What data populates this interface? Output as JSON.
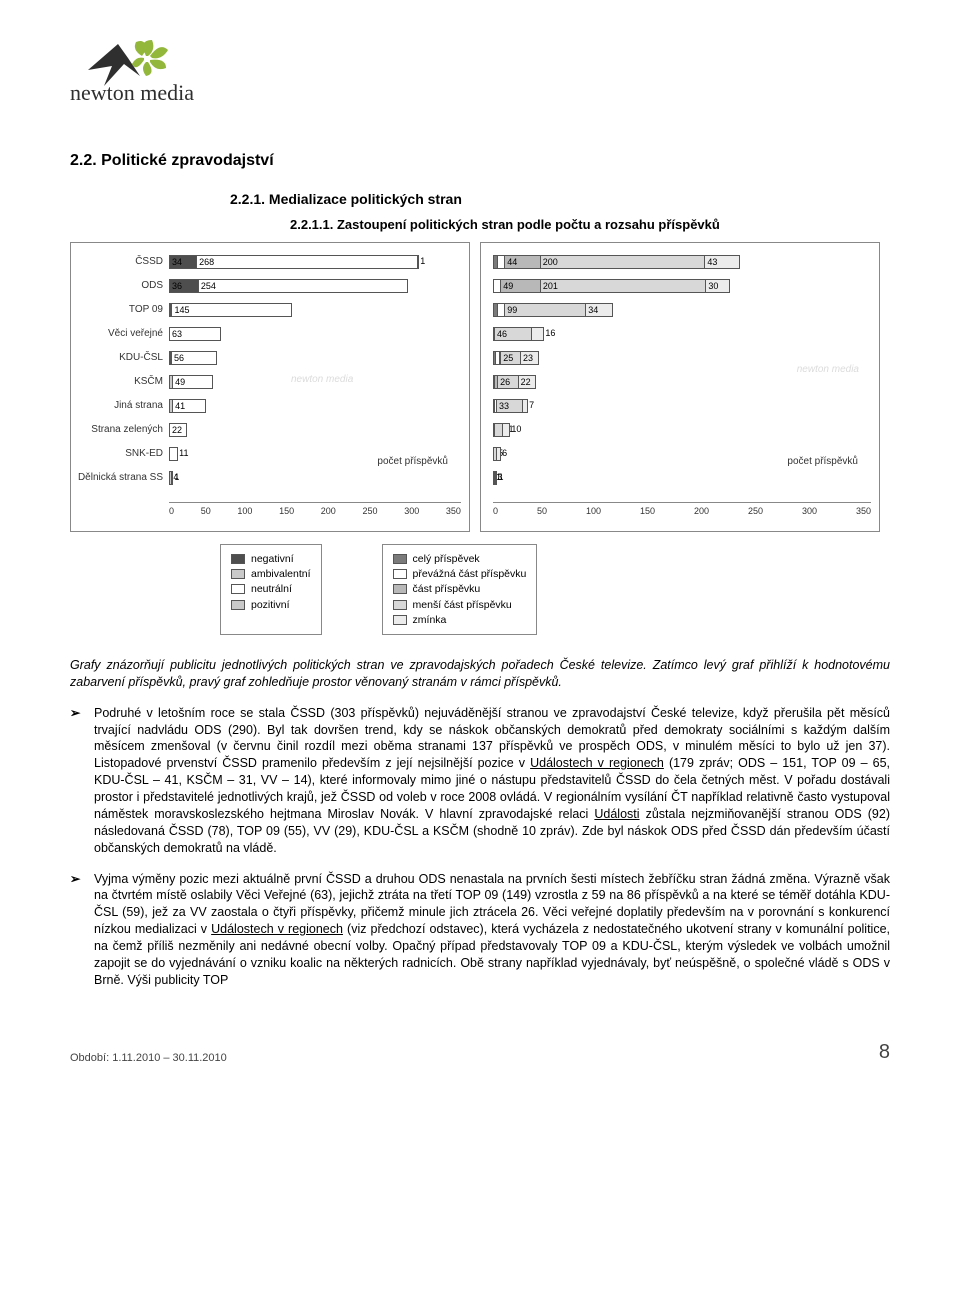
{
  "brand": {
    "name": "newton media"
  },
  "headings": {
    "h2": "2.2. Politické zpravodajství",
    "h3": "2.2.1. Medializace politických stran",
    "h4": "2.2.1.1. Zastoupení politických stran podle počtu a rozsahu příspěvků"
  },
  "chart_left": {
    "type": "stacked-bar-horizontal",
    "caption": "počet příspěvků",
    "xmax": 350,
    "xtick_step": 50,
    "xticks": [
      "0",
      "50",
      "100",
      "150",
      "200",
      "250",
      "300",
      "350"
    ],
    "categories": [
      "ČSSD",
      "ODS",
      "TOP 09",
      "Věci veřejné",
      "KDU-ČSL",
      "KSČM",
      "Jiná strana",
      "Strana zelených",
      "SNK-ED",
      "Dělnická strana SS"
    ],
    "series": [
      {
        "name": "negativní",
        "color": "#4e4e4e"
      },
      {
        "name": "ambivalentní",
        "color": "#c9c9c9"
      },
      {
        "name": "neutrální",
        "color": "#ffffff"
      },
      {
        "name": "pozitivní",
        "color": "#c9c9c9"
      }
    ],
    "rows": [
      {
        "label": "ČSSD",
        "segs": [
          {
            "v": 34,
            "c": "#4e4e4e"
          },
          {
            "v": 268,
            "c": "#ffffff"
          },
          {
            "v": 1,
            "c": "#c9c9c9"
          }
        ]
      },
      {
        "label": "ODS",
        "segs": [
          {
            "v": 36,
            "c": "#4e4e4e"
          },
          {
            "v": 254,
            "c": "#ffffff"
          }
        ]
      },
      {
        "label": "TOP 09",
        "segs": [
          {
            "v": 1,
            "c": "#4e4e4e"
          },
          {
            "v": 3,
            "c": "#c9c9c9"
          },
          {
            "v": 145,
            "c": "#ffffff"
          }
        ]
      },
      {
        "label": "Věci veřejné",
        "segs": [
          {
            "v": 63,
            "c": "#ffffff"
          }
        ]
      },
      {
        "label": "KDU-ČSL",
        "segs": [
          {
            "v": 1,
            "c": "#4e4e4e"
          },
          {
            "v": 2,
            "c": "#c9c9c9"
          },
          {
            "v": 56,
            "c": "#ffffff"
          }
        ]
      },
      {
        "label": "KSČM",
        "segs": [
          {
            "v": 5,
            "c": "#c9c9c9"
          },
          {
            "v": 49,
            "c": "#ffffff"
          }
        ]
      },
      {
        "label": "Jiná strana",
        "segs": [
          {
            "v": 5,
            "c": "#c9c9c9"
          },
          {
            "v": 41,
            "c": "#ffffff"
          }
        ]
      },
      {
        "label": "Strana zelených",
        "segs": [
          {
            "v": 22,
            "c": "#ffffff"
          }
        ]
      },
      {
        "label": "SNK-ED",
        "segs": [
          {
            "v": 11,
            "c": "#ffffff"
          }
        ]
      },
      {
        "label": "Dělnická strana SS",
        "segs": [
          {
            "v": 4,
            "c": "#c9c9c9"
          },
          {
            "v": 1,
            "c": "#ffffff"
          }
        ]
      }
    ]
  },
  "chart_right": {
    "type": "stacked-bar-horizontal",
    "caption": "počet příspěvků",
    "xmax": 350,
    "xtick_step": 50,
    "xticks": [
      "0",
      "50",
      "100",
      "150",
      "200",
      "250",
      "300",
      "350"
    ],
    "series": [
      {
        "name": "celý příspěvek",
        "color": "#7a7a7a"
      },
      {
        "name": "převážná část příspěvku",
        "color": "#ffffff"
      },
      {
        "name": "část příspěvku",
        "color": "#b8b8b8"
      },
      {
        "name": "menší část příspěvku",
        "color": "#d8d8d8"
      },
      {
        "name": "zmínka",
        "color": "#ececec"
      }
    ],
    "rows": [
      {
        "label": "",
        "segs": [
          {
            "v": 6,
            "c": "#7a7a7a"
          },
          {
            "v": 10,
            "c": "#ffffff"
          },
          {
            "v": 44,
            "c": "#b8b8b8"
          },
          {
            "v": 200,
            "c": "#d8d8d8"
          },
          {
            "v": 43,
            "c": "#ececec"
          }
        ]
      },
      {
        "label": "",
        "segs": [
          {
            "v": 10,
            "c": "#ffffff"
          },
          {
            "v": 49,
            "c": "#b8b8b8"
          },
          {
            "v": 201,
            "c": "#d8d8d8"
          },
          {
            "v": 30,
            "c": "#ececec"
          }
        ]
      },
      {
        "label": "",
        "segs": [
          {
            "v": 6,
            "c": "#7a7a7a"
          },
          {
            "v": 10,
            "c": "#ffffff"
          },
          {
            "v": 99,
            "c": "#d8d8d8"
          },
          {
            "v": 34,
            "c": "#ececec"
          }
        ]
      },
      {
        "label": "",
        "segs": [
          {
            "v": 1,
            "c": "#ffffff"
          },
          {
            "v": 46,
            "c": "#d8d8d8"
          },
          {
            "v": 16,
            "c": "#ececec"
          }
        ]
      },
      {
        "label": "",
        "segs": [
          {
            "v": 4,
            "c": "#7a7a7a"
          },
          {
            "v": 6,
            "c": "#ffffff"
          },
          {
            "v": 1,
            "c": "#b8b8b8"
          },
          {
            "v": 25,
            "c": "#d8d8d8"
          },
          {
            "v": 23,
            "c": "#ececec"
          }
        ]
      },
      {
        "label": "",
        "segs": [
          {
            "v": 1,
            "c": "#ffffff"
          },
          {
            "v": 5,
            "c": "#b8b8b8"
          },
          {
            "v": 26,
            "c": "#d8d8d8"
          },
          {
            "v": 22,
            "c": "#ececec"
          }
        ]
      },
      {
        "label": "",
        "segs": [
          {
            "v": 3,
            "c": "#7a7a7a"
          },
          {
            "v": 3,
            "c": "#ffffff"
          },
          {
            "v": 33,
            "c": "#d8d8d8"
          },
          {
            "v": 7,
            "c": "#ececec"
          }
        ]
      },
      {
        "label": "",
        "segs": [
          {
            "v": 1,
            "c": "#ffffff"
          },
          {
            "v": 11,
            "c": "#d8d8d8"
          },
          {
            "v": 10,
            "c": "#ececec"
          }
        ]
      },
      {
        "label": "",
        "segs": [
          {
            "v": 5,
            "c": "#d8d8d8"
          },
          {
            "v": 6,
            "c": "#ececec"
          }
        ]
      },
      {
        "label": "",
        "segs": [
          {
            "v": 1,
            "c": "#ffffff"
          },
          {
            "v": 3,
            "c": "#d8d8d8"
          },
          {
            "v": 1,
            "c": "#ececec"
          }
        ]
      }
    ]
  },
  "legend_left": [
    "negativní",
    "ambivalentní",
    "neutrální",
    "pozitivní"
  ],
  "legend_left_colors": [
    "#4e4e4e",
    "#c9c9c9",
    "#ffffff",
    "#c9c9c9"
  ],
  "legend_right": [
    "celý příspěvek",
    "převážná část příspěvku",
    "část příspěvku",
    "menší část příspěvku",
    "zmínka"
  ],
  "legend_right_colors": [
    "#7a7a7a",
    "#ffffff",
    "#b8b8b8",
    "#d8d8d8",
    "#ececec"
  ],
  "paragraphs": {
    "intro": "Grafy znázorňují publicitu jednotlivých politických stran ve zpravodajských pořadech České televize. Zatímco levý graf přihlíží k hodnotovému zabarvení příspěvků, pravý graf zohledňuje prostor věnovaný stranám v rámci příspěvků.",
    "b1": "Podruhé v letošním roce se stala ČSSD (303 příspěvků) nejuváděnější stranou ve zpravodajství České televize, když přerušila pět měsíců trvající nadvládu ODS (290). Byl tak dovršen trend, kdy se náskok občanských demokratů před demokraty sociálními s každým dalším měsícem zmenšoval (v červnu činil rozdíl mezi oběma stranami 137 příspěvků ve prospěch ODS, v minulém měsíci to bylo už jen 37). Listopadové prvenství ČSSD pramenilo především z její nejsilnější pozice v Událostech v regionech (179 zpráv; ODS – 151, TOP 09 – 65, KDU-ČSL – 41, KSČM – 31, VV – 14), které informovaly mimo jiné o nástupu představitelů ČSSD do čela četných měst. V pořadu dostávali prostor i představitelé jednotlivých krajů, jež ČSSD od voleb v roce 2008 ovládá. V regionálním vysílání ČT například relativně často vystupoval náměstek moravskoslezského hejtmana Miroslav Novák. V hlavní zpravodajské relaci Události zůstala nejzmiňovanější stranou ODS (92) následovaná ČSSD (78), TOP 09 (55), VV (29), KDU-ČSL a KSČM (shodně 10 zpráv). Zde byl náskok ODS před ČSSD dán především účastí občanských demokratů na vládě.",
    "b2": "Vyjma výměny pozic mezi aktuálně první ČSSD a druhou ODS nenastala na prvních šesti místech žebříčku stran žádná změna. Výrazně však na čtvrtém místě oslabily Věci Veřejné (63), jejichž ztráta na třetí TOP 09 (149) vzrostla z 59 na 86 příspěvků a na které se téměř dotáhla KDU-ČSL (59), jež za VV zaostala o čtyři příspěvky, přičemž minule jich ztrácela 26. Věci veřejné doplatily především na v porovnání s konkurencí nízkou medializaci v Událostech v regionech (viz předchozí odstavec), která vycházela z nedostatečného ukotvení strany v komunální politice, na čemž příliš nezměnily ani nedávné obecní volby. Opačný případ představovaly TOP 09 a KDU-ČSL, kterým výsledek ve volbách umožnil zapojit se do vyjednávání o vzniku koalic na některých radnicích. Obě strany například vyjednávaly, byť neúspěšně, o společné vládě s ODS v Brně. Výši publicity TOP"
  },
  "underline1": "Událostech v regionech",
  "underline2": "Události",
  "underline3": "Událostech v regionech",
  "bullet_marker": "➢",
  "footer": {
    "period": "Období: 1.11.2010 – 30.11.2010",
    "page": "8"
  }
}
